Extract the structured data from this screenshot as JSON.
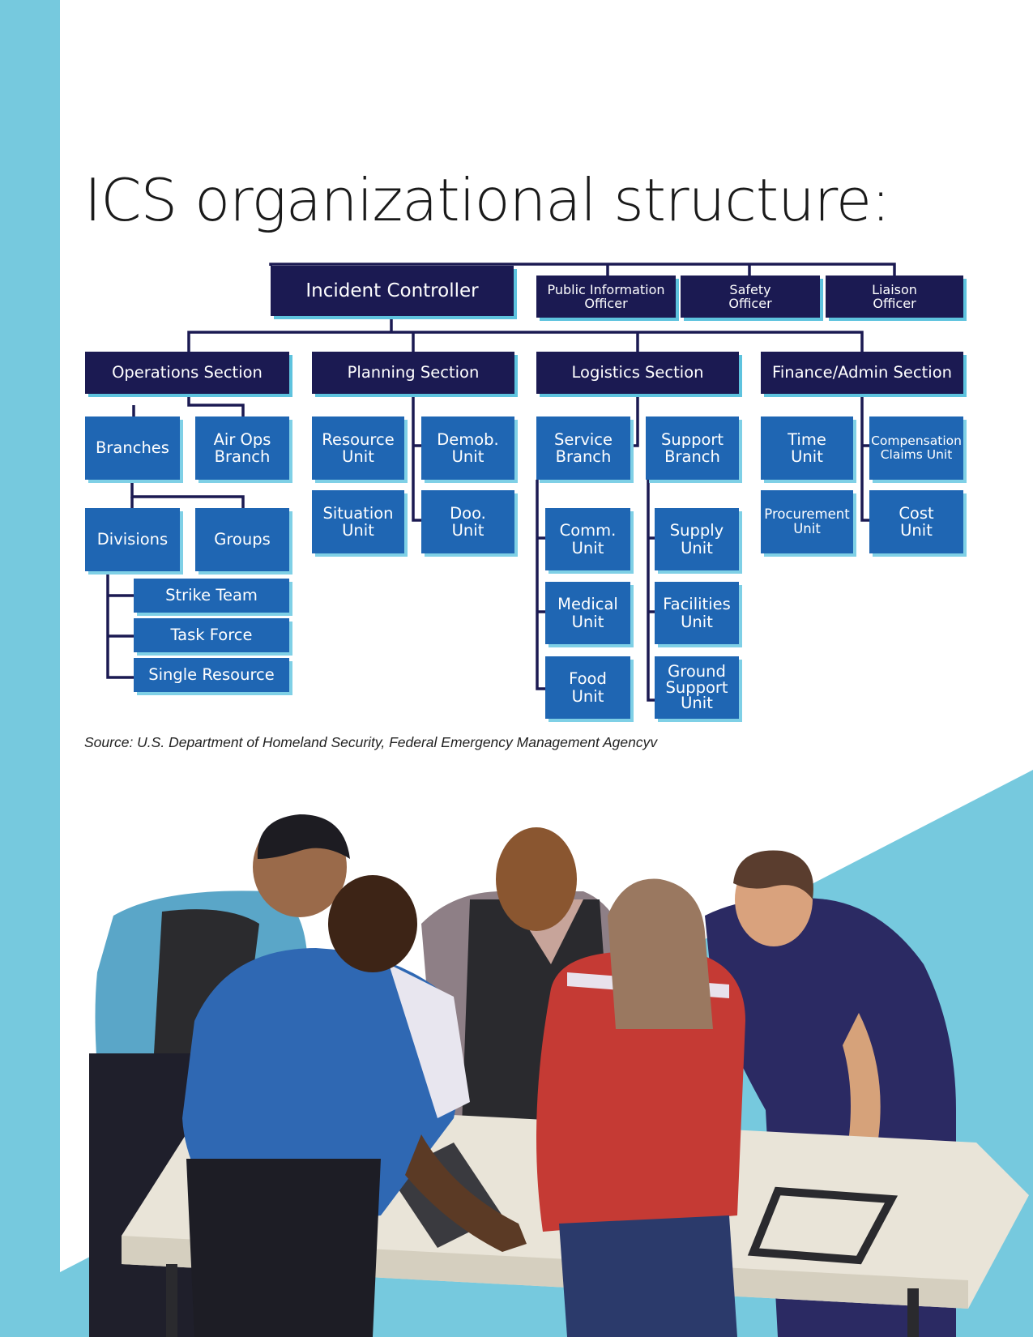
{
  "title": "ICS organizational structure:",
  "source": "Source: U.S. Department of Homeland Security, Federal Emergency Management Agencyv",
  "colors": {
    "navy": "#1b1a52",
    "blue": "#1f66b3",
    "cyan": "#76c9de"
  },
  "org": {
    "top": {
      "incident_controller": "Incident Controller",
      "public_information_officer": "Public Information Officer",
      "safety_officer": "Safety Officer",
      "liaison_officer": "Liaison Officer"
    },
    "sections": {
      "operations": "Operations Section",
      "planning": "Planning Section",
      "logistics": "Logistics Section",
      "finance": "Finance/Admin Section"
    },
    "operations": {
      "branches": "Branches",
      "air_ops_branch": "Air Ops Branch",
      "divisions": "Divisions",
      "groups": "Groups",
      "strike_team": "Strike Team",
      "task_force": "Task Force",
      "single_resource": "Single Resource"
    },
    "planning": {
      "resource_unit": "Resource Unit",
      "demob_unit": "Demob. Unit",
      "situation_unit": "Situation Unit",
      "doo_unit": "Doo. Unit"
    },
    "logistics": {
      "service_branch": "Service Branch",
      "support_branch": "Support Branch",
      "comm_unit": "Comm. Unit",
      "medical_unit": "Medical Unit",
      "food_unit": "Food Unit",
      "supply_unit": "Supply Unit",
      "facilities_unit": "Facilities Unit",
      "ground_support_unit": "Ground Support Unit"
    },
    "finance": {
      "time_unit": "Time Unit",
      "compensation_claims_unit": "Compensation Claims Unit",
      "procurement_unit": "Procurement Unit",
      "cost_unit": "Cost Unit"
    }
  }
}
